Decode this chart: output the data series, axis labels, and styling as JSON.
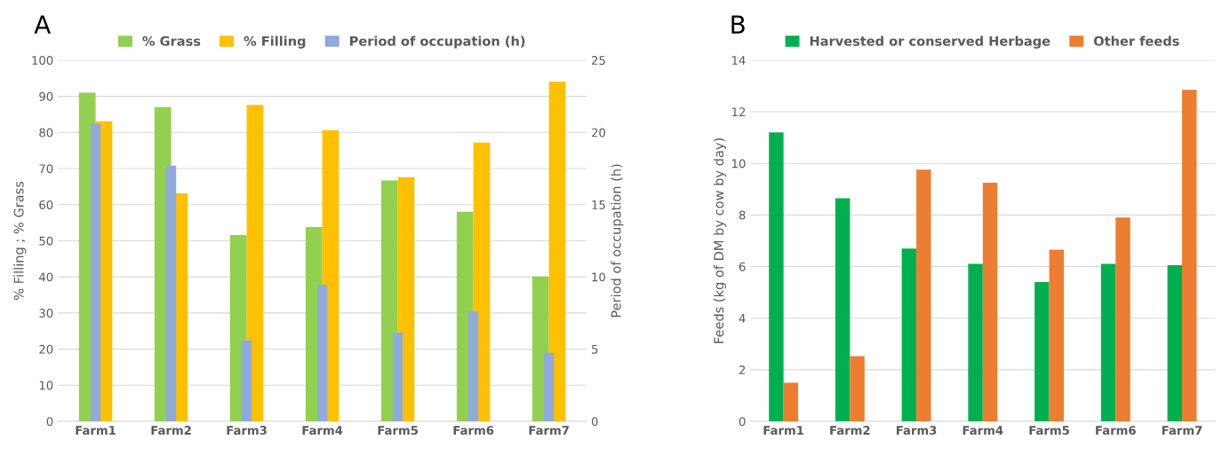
{
  "chart_data": [
    {
      "type": "bar",
      "annotations": [
        "A"
      ],
      "ylabel": "% Filling ; % Grass",
      "y2label": "Period of occupation (h)",
      "categories": [
        "Farm1",
        "Farm2",
        "Farm3",
        "Farm4",
        "Farm5",
        "Farm6",
        "Farm7"
      ],
      "series": [
        {
          "name": "% Grass",
          "color": "#92d050",
          "values": [
            91,
            87,
            51.6,
            53.8,
            66.7,
            58,
            40.1
          ]
        },
        {
          "name": "% Filling",
          "color": "#ffc000",
          "values": [
            83.1,
            63.1,
            87.6,
            80.6,
            67.6,
            77.2,
            94.1
          ]
        },
        {
          "name": "Period of occupation (h)",
          "color": "#8faadc",
          "axis": "y2",
          "values": [
            20.6,
            17.7,
            5.6,
            9.45,
            6.15,
            7.6,
            4.75
          ]
        }
      ],
      "ylim": [
        0,
        100
      ],
      "yticks": [
        0,
        10,
        20,
        30,
        40,
        50,
        60,
        70,
        80,
        90,
        100
      ],
      "y2lim": [
        0,
        25
      ],
      "y2ticks": [
        0,
        5,
        10,
        15,
        20,
        25
      ],
      "grid": "y",
      "legend": "top"
    },
    {
      "type": "bar",
      "annotations": [
        "B"
      ],
      "ylabel": "Feeds (kg of DM by cow by day)",
      "categories": [
        "Farm1",
        "Farm2",
        "Farm3",
        "Farm4",
        "Farm5",
        "Farm6",
        "Farm7"
      ],
      "series": [
        {
          "name": "Harvested or conserved Herbage",
          "color": "#00b050",
          "values": [
            11.2,
            8.65,
            6.7,
            6.1,
            5.4,
            6.1,
            6.05
          ]
        },
        {
          "name": "Other feeds",
          "color": "#ed7d31",
          "values": [
            1.5,
            2.53,
            9.76,
            9.25,
            6.65,
            7.9,
            12.85
          ]
        }
      ],
      "ylim": [
        0,
        14
      ],
      "yticks": [
        0,
        2,
        4,
        6,
        8,
        10,
        12,
        14
      ],
      "grid": "y",
      "legend": "top"
    }
  ]
}
